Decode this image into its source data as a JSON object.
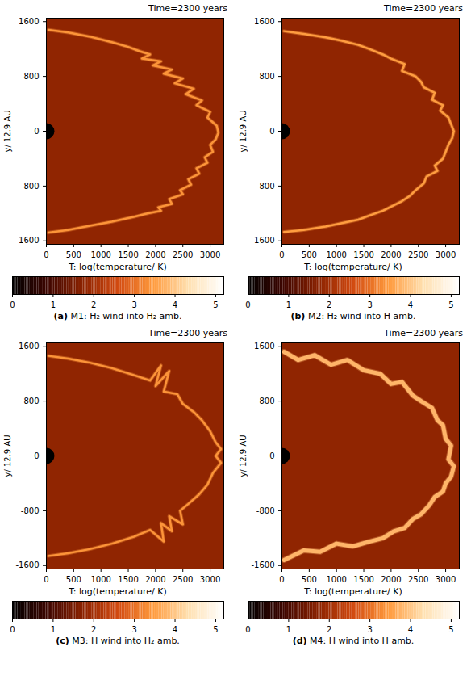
{
  "chart_data": [
    {
      "type": "heatmap",
      "title": "Time=2300 years",
      "caption": "(a) M1: H₂ wind into H₂ amb.",
      "ylabel": "y/ 12.9 AU",
      "xlim": [
        0,
        3250
      ],
      "ylim": [
        -1650,
        1650
      ],
      "xticks": [
        0,
        500,
        1000,
        1500,
        2000,
        2500,
        3000
      ],
      "yticks": [
        -1600,
        -800,
        0,
        800,
        1600
      ],
      "background_logT": 1.8,
      "source_logT": 0,
      "shock_logT": 3.4,
      "line_style": "solid",
      "shock_front": {
        "x": [
          40,
          400,
          800,
          1200,
          1500,
          1700,
          1900,
          1750,
          2100,
          1950,
          2300,
          2150,
          2500,
          2350,
          2700,
          2550,
          2850,
          2750,
          3000,
          2950,
          3120,
          3150,
          3100,
          3000,
          3050,
          2900,
          2950,
          2750,
          2800,
          2600,
          2650,
          2450,
          2500,
          2250,
          2300,
          2050,
          2100,
          1850,
          1600,
          1200,
          800,
          400,
          40
        ],
        "y": [
          1480,
          1440,
          1380,
          1300,
          1230,
          1170,
          1120,
          1060,
          1020,
          960,
          900,
          840,
          770,
          700,
          620,
          540,
          450,
          380,
          280,
          200,
          80,
          -20,
          -120,
          -200,
          -300,
          -380,
          -460,
          -540,
          -620,
          -700,
          -780,
          -860,
          -920,
          -990,
          -1060,
          -1110,
          -1160,
          -1200,
          -1250,
          -1320,
          -1380,
          -1440,
          -1480
        ]
      },
      "colorbar": {
        "label": "T: log(temperature/ K)",
        "range": [
          0,
          5.2
        ],
        "ticks": [
          0,
          1,
          2,
          3,
          4,
          5
        ]
      }
    },
    {
      "type": "heatmap",
      "title": "Time=2300 years",
      "caption": "(b) M2: H₂ wind into H amb.",
      "ylabel": "y/ 12.9 AU",
      "xlim": [
        0,
        3250
      ],
      "ylim": [
        -1650,
        1650
      ],
      "xticks": [
        0,
        500,
        1000,
        1500,
        2000,
        2500,
        3000
      ],
      "yticks": [
        -1600,
        -800,
        0,
        800,
        1600
      ],
      "background_logT": 1.8,
      "source_logT": 0,
      "shock_logT": 3.5,
      "line_style": "solid",
      "shock_front": {
        "x": [
          40,
          400,
          800,
          1100,
          1400,
          1600,
          1850,
          2000,
          2250,
          2200,
          2450,
          2550,
          2600,
          2800,
          2750,
          2950,
          2900,
          3050,
          3100,
          3150,
          3120,
          3050,
          3000,
          2950,
          2800,
          2850,
          2650,
          2600,
          2450,
          2350,
          2200,
          2000,
          1850,
          1600,
          1400,
          1100,
          800,
          400,
          40
        ],
        "y": [
          1460,
          1420,
          1370,
          1320,
          1260,
          1200,
          1120,
          1060,
          980,
          880,
          800,
          720,
          640,
          560,
          460,
          380,
          300,
          200,
          100,
          0,
          -100,
          -200,
          -300,
          -400,
          -500,
          -580,
          -660,
          -760,
          -860,
          -940,
          -1020,
          -1100,
          -1160,
          -1230,
          -1290,
          -1340,
          -1390,
          -1440,
          -1470
        ]
      },
      "colorbar": {
        "label": "T: log(temperature/ K)",
        "range": [
          0,
          5.2
        ],
        "ticks": [
          0,
          1,
          2,
          3,
          4,
          5
        ]
      }
    },
    {
      "type": "heatmap",
      "title": "Time=2300 years",
      "caption": "(c) M3: H wind into H₂ amb.",
      "ylabel": "y/ 12.9 AU",
      "xlim": [
        0,
        3250
      ],
      "ylim": [
        -1650,
        1650
      ],
      "xticks": [
        0,
        500,
        1000,
        1500,
        2000,
        2500,
        3000
      ],
      "yticks": [
        -1600,
        -800,
        0,
        800,
        1600
      ],
      "background_logT": 1.8,
      "source_logT": 0,
      "shock_logT": 3.4,
      "line_style": "solid",
      "shock_front": {
        "x": [
          40,
          400,
          800,
          1200,
          1600,
          1900,
          2100,
          2000,
          2250,
          2150,
          2400,
          2500,
          2700,
          2850,
          3000,
          3100,
          3200,
          3100,
          3200,
          3050,
          2950,
          2800,
          2600,
          2450,
          2500,
          2250,
          2300,
          2100,
          2150,
          1900,
          1600,
          1200,
          800,
          400,
          40
        ],
        "y": [
          1460,
          1420,
          1360,
          1280,
          1180,
          1100,
          1320,
          1020,
          1240,
          940,
          900,
          760,
          640,
          520,
          360,
          200,
          100,
          0,
          -100,
          -250,
          -420,
          -560,
          -700,
          -800,
          -1000,
          -880,
          -1100,
          -980,
          -1250,
          -1080,
          -1180,
          -1280,
          -1360,
          -1420,
          -1460
        ]
      },
      "colorbar": {
        "label": "T: log(temperature/ K)",
        "range": [
          0,
          5.2
        ],
        "ticks": [
          0,
          1,
          2,
          3,
          4,
          5
        ]
      }
    },
    {
      "type": "heatmap",
      "title": "Time=2300 years",
      "caption": "(d) M4: H wind into H amb.",
      "ylabel": "y/ 12.9 AU",
      "xlim": [
        0,
        3250
      ],
      "ylim": [
        -1650,
        1650
      ],
      "xticks": [
        0,
        500,
        1000,
        1500,
        2000,
        2500,
        3000
      ],
      "yticks": [
        -1600,
        -800,
        0,
        800,
        1600
      ],
      "background_logT": 1.8,
      "source_logT": 0,
      "shock_logT": 3.8,
      "line_style": "thick",
      "shock_front": {
        "x": [
          40,
          300,
          600,
          900,
          1200,
          1500,
          1800,
          2000,
          2200,
          2400,
          2550,
          2750,
          2850,
          2950,
          3000,
          3100,
          3050,
          3150,
          3100,
          3000,
          2950,
          2800,
          2700,
          2550,
          2400,
          2250,
          2050,
          1850,
          1600,
          1300,
          1000,
          700,
          400,
          40
        ],
        "y": [
          1520,
          1400,
          1470,
          1330,
          1400,
          1250,
          1200,
          1050,
          1080,
          880,
          800,
          700,
          520,
          450,
          250,
          150,
          -50,
          -150,
          -300,
          -400,
          -520,
          -600,
          -720,
          -850,
          -920,
          -1050,
          -1100,
          -1200,
          -1250,
          -1320,
          -1280,
          -1400,
          -1380,
          -1520
        ]
      },
      "colorbar": {
        "label": "T: log(temperature/ K)",
        "range": [
          0,
          5.2
        ],
        "ticks": [
          0,
          1,
          2,
          3,
          4,
          5
        ]
      }
    }
  ]
}
